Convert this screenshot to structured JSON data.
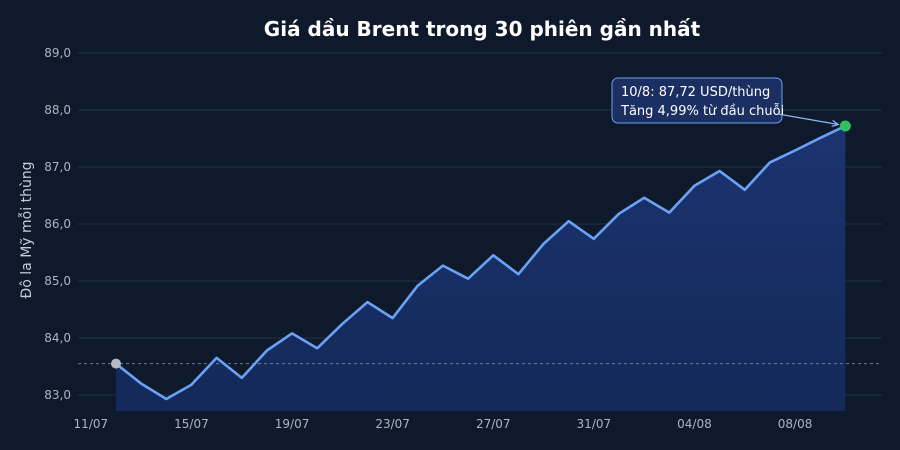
{
  "chart_data": {
    "type": "line",
    "title": "Giá dầu Brent trong 30 phiên gần nhất",
    "ylabel": "Đô la Mỹ mỗi thùng",
    "xlabel": "",
    "ylim": [
      82.7,
      89.0
    ],
    "yticks": [
      "83,0",
      "84,0",
      "85,0",
      "86,0",
      "87,0",
      "88,0",
      "89,0"
    ],
    "ytick_values": [
      83,
      84,
      85,
      86,
      87,
      88,
      89
    ],
    "xticks": [
      "11/07",
      "15/07",
      "19/07",
      "23/07",
      "27/07",
      "31/07",
      "04/08",
      "08/08"
    ],
    "x": [
      "12/07",
      "13/07",
      "14/07",
      "15/07",
      "16/07",
      "17/07",
      "18/07",
      "19/07",
      "20/07",
      "21/07",
      "22/07",
      "23/07",
      "24/07",
      "25/07",
      "26/07",
      "27/07",
      "28/07",
      "29/07",
      "30/07",
      "31/07",
      "01/08",
      "02/08",
      "03/08",
      "04/08",
      "05/08",
      "06/08",
      "07/08",
      "08/08",
      "09/08",
      "10/08"
    ],
    "series": [
      {
        "values": [
          83.55,
          83.2,
          82.93,
          83.18,
          83.65,
          83.3,
          83.78,
          84.08,
          83.82,
          84.25,
          84.63,
          84.35,
          84.92,
          85.27,
          85.04,
          85.45,
          85.12,
          85.65,
          86.05,
          85.74,
          86.18,
          86.46,
          86.2,
          86.67,
          86.93,
          86.6,
          87.08,
          87.29,
          87.51,
          87.72
        ],
        "color": "#6aa2f5"
      }
    ],
    "reference_line": 83.55,
    "annotation": {
      "line1": "10/8: 87,72 USD/thùng",
      "line2": "Tăng 4,99% từ đầu chuỗi"
    },
    "start_point_color": "#b3bac4",
    "end_point_color": "#2fc15f",
    "grid": true
  }
}
